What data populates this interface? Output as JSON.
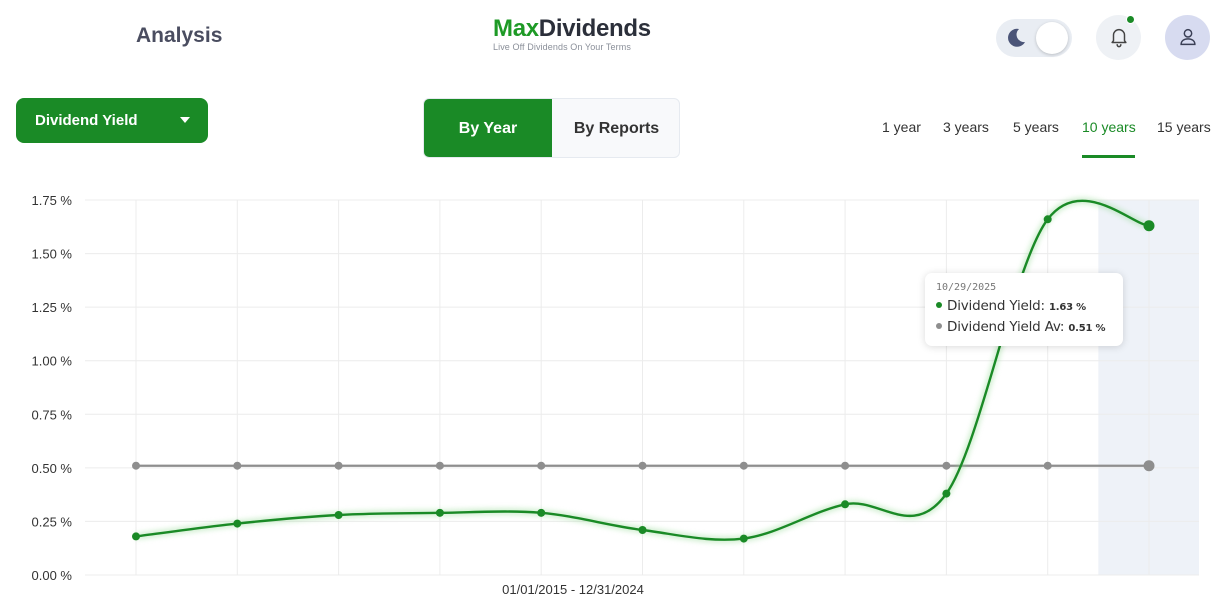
{
  "header": {
    "page_title": "Analysis",
    "logo": {
      "part1": "Max",
      "part2": "Dividends",
      "tagline": "Live Off Dividends On Your Terms"
    },
    "notification_dot": true
  },
  "controls": {
    "metric_select": "Dividend Yield",
    "mode_tabs": [
      {
        "label": "By Year",
        "active": true
      },
      {
        "label": "By Reports",
        "active": false
      }
    ],
    "range_tabs": [
      {
        "label": "1 year",
        "active": false
      },
      {
        "label": "3 years",
        "active": false
      },
      {
        "label": "5 years",
        "active": false
      },
      {
        "label": "10 years",
        "active": true
      },
      {
        "label": "15 years",
        "active": false
      }
    ]
  },
  "colors": {
    "accent": "#1a8a26",
    "average": "#8e8e8e",
    "highlight": "#eef2f8"
  },
  "chart_data": {
    "type": "line",
    "xlabel": "01/01/2015 - 12/31/2024",
    "ylim": [
      0,
      1.75
    ],
    "y_ticks": [
      "0.00 %",
      "0.25 %",
      "0.50 %",
      "0.75 %",
      "1.00 %",
      "1.25 %",
      "1.50 %",
      "1.75 %"
    ],
    "highlight_index": 10,
    "series": [
      {
        "name": "Dividend Yield",
        "values": [
          0.18,
          0.24,
          0.28,
          0.29,
          0.29,
          0.21,
          0.17,
          0.33,
          0.38,
          1.66,
          1.63
        ]
      },
      {
        "name": "Dividend Yield Av",
        "values": [
          0.51,
          0.51,
          0.51,
          0.51,
          0.51,
          0.51,
          0.51,
          0.51,
          0.51,
          0.51,
          0.51
        ]
      }
    ],
    "tooltip": {
      "date": "10/29/2025",
      "rows": [
        {
          "label": "Dividend Yield:",
          "value": "1.63 %"
        },
        {
          "label": "Dividend Yield Av:",
          "value": "0.51 %"
        }
      ]
    }
  }
}
